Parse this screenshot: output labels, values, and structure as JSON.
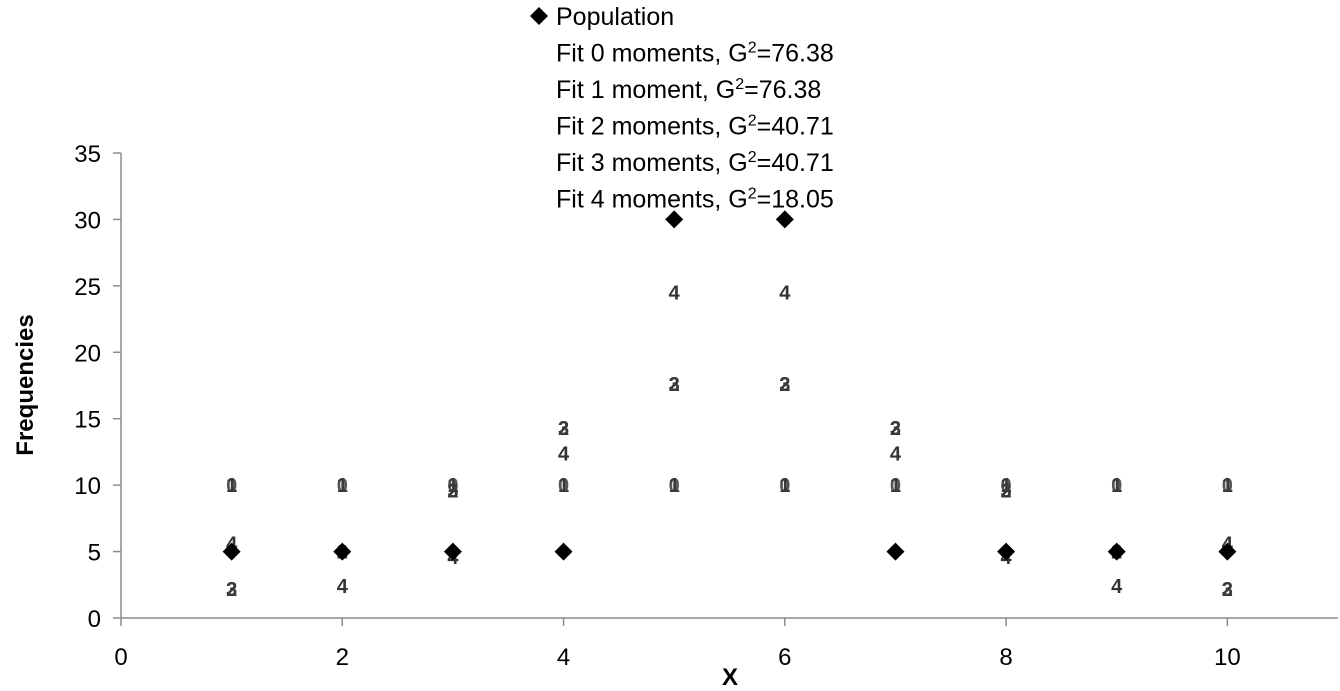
{
  "chart_data": {
    "type": "scatter",
    "title": "",
    "xlabel": "X",
    "ylabel": "Frequencies",
    "xlim": [
      0,
      11
    ],
    "ylim": [
      0,
      35
    ],
    "x_ticks": [
      "0",
      "2",
      "4",
      "6",
      "8",
      "10"
    ],
    "y_ticks": [
      "0",
      "5",
      "10",
      "15",
      "20",
      "25",
      "30",
      "35"
    ],
    "grid": false,
    "legend_position": "top",
    "series": [
      {
        "name": "Population",
        "marker": "diamond",
        "color": "#000000",
        "x": [
          1,
          2,
          3,
          4,
          5,
          6,
          7,
          8,
          9,
          10
        ],
        "y": [
          5,
          5,
          5,
          5,
          30,
          30,
          5,
          5,
          5,
          5
        ]
      },
      {
        "name": "Fit 0 moments, G²=76.38",
        "marker_text": "0",
        "x": [
          1,
          2,
          3,
          4,
          5,
          6,
          7,
          8,
          9,
          10
        ],
        "y": [
          10,
          10,
          10,
          10,
          10,
          10,
          10,
          10,
          10,
          10
        ]
      },
      {
        "name": "Fit 1 moment, G²=76.38",
        "marker_text": "1",
        "x": [
          1,
          2,
          3,
          4,
          5,
          6,
          7,
          8,
          9,
          10
        ],
        "y": [
          10,
          10,
          10,
          10,
          10,
          10,
          10,
          10,
          10,
          10
        ]
      },
      {
        "name": "Fit 2 moments, G²=40.71",
        "marker_text": "2",
        "x": [
          1,
          2,
          3,
          4,
          5,
          6,
          7,
          8,
          9,
          10
        ],
        "y": [
          2.2,
          5.0,
          9.6,
          14.3,
          17.6,
          17.6,
          14.3,
          9.6,
          5.0,
          2.2
        ]
      },
      {
        "name": "Fit 3 moments, G²=40.71",
        "marker_text": "3",
        "x": [
          1,
          2,
          3,
          4,
          5,
          6,
          7,
          8,
          9,
          10
        ],
        "y": [
          2.2,
          5.0,
          9.6,
          14.3,
          17.6,
          17.6,
          14.3,
          9.6,
          5.0,
          2.2
        ]
      },
      {
        "name": "Fit 4 moments, G²=18.05",
        "marker_text": "4",
        "x": [
          1,
          2,
          3,
          4,
          5,
          6,
          7,
          8,
          9,
          10
        ],
        "y": [
          5.6,
          2.4,
          4.6,
          12.4,
          24.5,
          24.5,
          12.4,
          4.6,
          2.4,
          5.6
        ]
      }
    ]
  },
  "legend": {
    "items": [
      {
        "prefix": "",
        "sup": "",
        "suffix": "Population",
        "symbol": "diamond"
      },
      {
        "prefix": "Fit 0 moments, G",
        "sup": "2",
        "suffix": "=76.38",
        "symbol": "none"
      },
      {
        "prefix": "Fit 1 moment, G",
        "sup": "2",
        "suffix": "=76.38",
        "symbol": "none"
      },
      {
        "prefix": "Fit 2 moments, G",
        "sup": "2",
        "suffix": "=40.71",
        "symbol": "none"
      },
      {
        "prefix": "Fit 3 moments, G",
        "sup": "2",
        "suffix": "=40.71",
        "symbol": "none"
      },
      {
        "prefix": "Fit 4 moments, G",
        "sup": "2",
        "suffix": "=18.05",
        "symbol": "none"
      }
    ]
  }
}
